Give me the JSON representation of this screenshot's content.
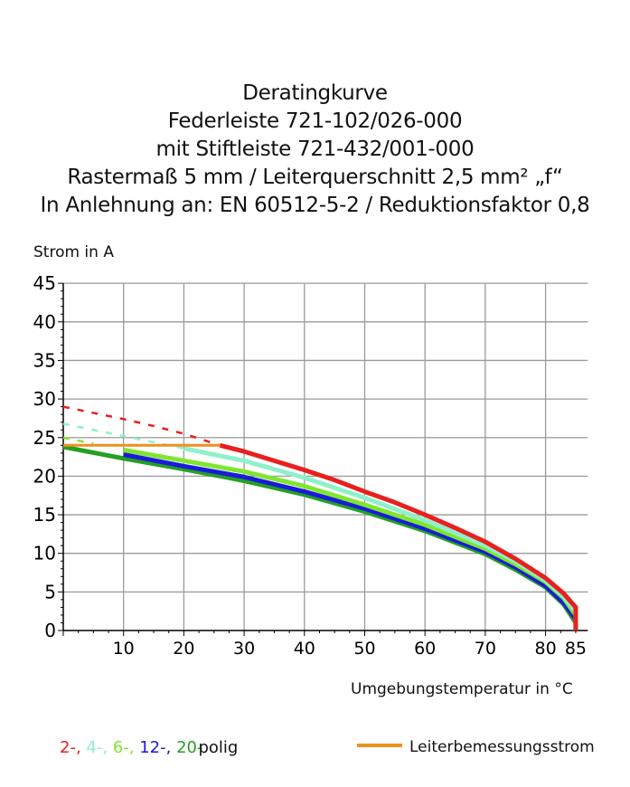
{
  "chart_data": {
    "type": "line",
    "title": [
      "Deratingkurve",
      "Federleiste 721-102/026-000",
      "mit Stiftleiste 721-432/001-000",
      "Rastermaß 5 mm / Leiterquerschnitt 2,5 mm² „f“",
      "In Anlehnung an: EN 60512-5-2 / Reduktionsfaktor 0,8"
    ],
    "xlabel": "Umgebungstemperatur in °C",
    "ylabel": "Strom in A",
    "xlim": [
      0,
      87
    ],
    "ylim": [
      0,
      45
    ],
    "xticks": [
      10,
      20,
      30,
      40,
      50,
      60,
      70,
      80,
      85
    ],
    "yticks": [
      0,
      5,
      10,
      15,
      20,
      25,
      30,
      35,
      40,
      45
    ],
    "grid": true,
    "series": [
      {
        "name": "2-",
        "color": "#e8201e",
        "dashed_until": 26,
        "x": [
          0,
          5,
          10,
          15,
          20,
          26,
          30,
          35,
          40,
          45,
          50,
          55,
          60,
          65,
          70,
          75,
          80,
          83,
          85,
          85
        ],
        "y": [
          29,
          28.2,
          27.4,
          26.5,
          25.5,
          24,
          23.2,
          22,
          20.8,
          19.5,
          18,
          16.6,
          15,
          13.3,
          11.5,
          9.3,
          6.8,
          4.8,
          3,
          0
        ]
      },
      {
        "name": "4-",
        "color": "#8ff0cc",
        "dashed_until": 20,
        "x": [
          0,
          5,
          10,
          15,
          20,
          25,
          30,
          40,
          50,
          60,
          70,
          75,
          80,
          83,
          85,
          85
        ],
        "y": [
          26.8,
          26,
          25.2,
          24.4,
          23.6,
          22.8,
          22,
          19.8,
          17.2,
          14.3,
          11,
          9,
          6.5,
          4.4,
          2.5,
          0
        ]
      },
      {
        "name": "6-",
        "color": "#7fe62e",
        "dashed_until": 6,
        "x": [
          0,
          5,
          10,
          20,
          30,
          40,
          50,
          60,
          70,
          75,
          80,
          83,
          85,
          85
        ],
        "y": [
          25,
          24.2,
          23.4,
          22,
          20.6,
          18.7,
          16.3,
          13.7,
          10.6,
          8.6,
          6.3,
          4.2,
          2,
          0
        ]
      },
      {
        "name": "12-",
        "color": "#1a1adc",
        "dashed_until": 1,
        "x": [
          0,
          10,
          20,
          30,
          40,
          50,
          60,
          70,
          75,
          80,
          83,
          85,
          85
        ],
        "y": [
          24.3,
          22.8,
          21.3,
          19.9,
          18,
          15.8,
          13.2,
          10.2,
          8.2,
          5.8,
          3.6,
          1.5,
          0
        ]
      },
      {
        "name": "20-",
        "color": "#23a023",
        "dashed_until": 0,
        "x": [
          0,
          10,
          20,
          30,
          40,
          50,
          60,
          70,
          75,
          80,
          83,
          85
        ],
        "y": [
          23.8,
          22.3,
          20.9,
          19.4,
          17.6,
          15.4,
          12.9,
          9.9,
          7.9,
          5.6,
          3.4,
          1
        ]
      },
      {
        "name": "Leiterbemessungsstrom",
        "color": "#f0901e",
        "dashed_until": 0,
        "x": [
          0,
          26
        ],
        "y": [
          24,
          24
        ]
      }
    ],
    "legend": {
      "items": [
        "2-,",
        "4-,",
        "6-,",
        "12-,",
        "20-"
      ],
      "suffix": "polig",
      "rated_current": "Leiterbemessungsstrom"
    }
  }
}
